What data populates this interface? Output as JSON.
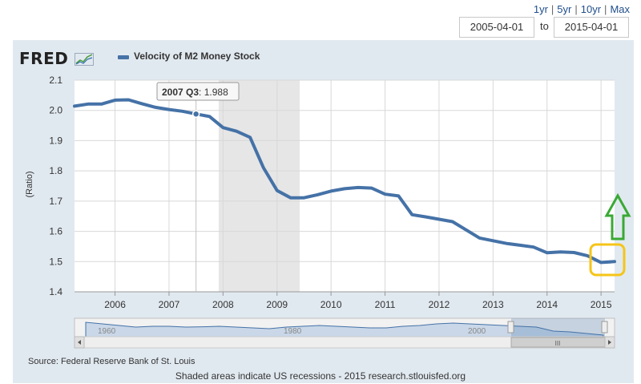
{
  "range_links": [
    "1yr",
    "5yr",
    "10yr",
    "Max"
  ],
  "date_from": "2005-04-01",
  "to_label": "to",
  "date_to": "2015-04-01",
  "logo": "FRED",
  "source": "Source: Federal Reserve Bank of St. Louis",
  "footnote": "Shaded areas indicate US recessions - 2015 research.stlouisfed.org",
  "tooltip": {
    "label": "2007 Q3",
    "value": "1.988"
  },
  "navigator": {
    "tick_labels": [
      "1960",
      "1980",
      "2000"
    ],
    "scroll_grip": "III"
  },
  "colors": {
    "series": "#4572a7",
    "recession": "#e6e6e6",
    "highlight_box": "#f5c518",
    "arrow": "#3aa935"
  },
  "chart_data": {
    "type": "line",
    "title": "",
    "ylabel": "(Ratio)",
    "xlabel": "",
    "ylim": [
      1.4,
      2.1
    ],
    "yticks": [
      "1.4",
      "1.5",
      "1.6",
      "1.7",
      "1.8",
      "1.9",
      "2.0",
      "2.1"
    ],
    "xlim": [
      2005.25,
      2015.25
    ],
    "xticks": [
      "2006",
      "2007",
      "2008",
      "2009",
      "2010",
      "2011",
      "2012",
      "2013",
      "2014",
      "2015"
    ],
    "grid": true,
    "legend_position": "top-left",
    "recession": [
      2007.92,
      2009.42
    ],
    "series": [
      {
        "name": "Velocity of M2 Money Stock",
        "x": [
          2005.25,
          2005.5,
          2005.75,
          2006.0,
          2006.25,
          2006.5,
          2006.75,
          2007.0,
          2007.25,
          2007.5,
          2007.75,
          2008.0,
          2008.25,
          2008.5,
          2008.75,
          2009.0,
          2009.25,
          2009.5,
          2009.75,
          2010.0,
          2010.25,
          2010.5,
          2010.75,
          2011.0,
          2011.25,
          2011.5,
          2011.75,
          2012.0,
          2012.25,
          2012.5,
          2012.75,
          2013.0,
          2013.25,
          2013.5,
          2013.75,
          2014.0,
          2014.25,
          2014.5,
          2014.75,
          2015.0,
          2015.25
        ],
        "values": [
          2.014,
          2.021,
          2.021,
          2.034,
          2.035,
          2.022,
          2.01,
          2.003,
          1.997,
          1.988,
          1.98,
          1.943,
          1.931,
          1.911,
          1.81,
          1.735,
          1.711,
          1.711,
          1.721,
          1.733,
          1.741,
          1.745,
          1.743,
          1.723,
          1.717,
          1.655,
          1.648,
          1.64,
          1.632,
          1.605,
          1.578,
          1.569,
          1.56,
          1.554,
          1.548,
          1.529,
          1.532,
          1.53,
          1.519,
          1.497,
          1.5
        ]
      }
    ]
  }
}
